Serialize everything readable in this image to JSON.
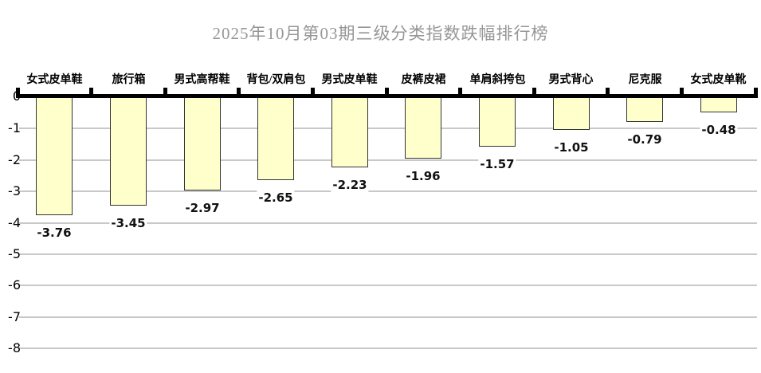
{
  "chart_data": {
    "type": "bar",
    "title": "2025年10月第03期三级分类指数跌幅排行榜",
    "categories": [
      "女式皮单鞋",
      "旅行箱",
      "男式高帮鞋",
      "背包/双肩包",
      "男式皮单鞋",
      "皮裤皮裙",
      "单肩斜挎包",
      "男式背心",
      "尼克服",
      "女式皮单靴"
    ],
    "values": [
      -3.76,
      -3.45,
      -2.97,
      -2.65,
      -2.23,
      -1.96,
      -1.57,
      -1.05,
      -0.79,
      -0.48
    ],
    "value_labels": [
      "-3.76",
      "-3.45",
      "-2.97",
      "-2.65",
      "-2.23",
      "-1.96",
      "-1.57",
      "-1.05",
      "-0.79",
      "-0.48"
    ],
    "xlabel": "",
    "ylabel": "",
    "ylim": [
      -8,
      0
    ],
    "yticks": [
      0,
      -1,
      -2,
      -3,
      -4,
      -5,
      -6,
      -7,
      -8
    ],
    "ytick_labels": [
      "0",
      "-1",
      "-2",
      "-3",
      "-4",
      "-5",
      "-6",
      "-7",
      "-8"
    ],
    "grid": true,
    "legend": false,
    "category_labels_position": "above-zero-axis",
    "colors": {
      "background": "#FFFFFF",
      "bar_fill": "#FFFFCC",
      "bar_border": "#333333",
      "grid_line": "#C8C8C8",
      "axis_line": "#000000",
      "title_text": "#969696",
      "label_text": "#000000"
    }
  }
}
